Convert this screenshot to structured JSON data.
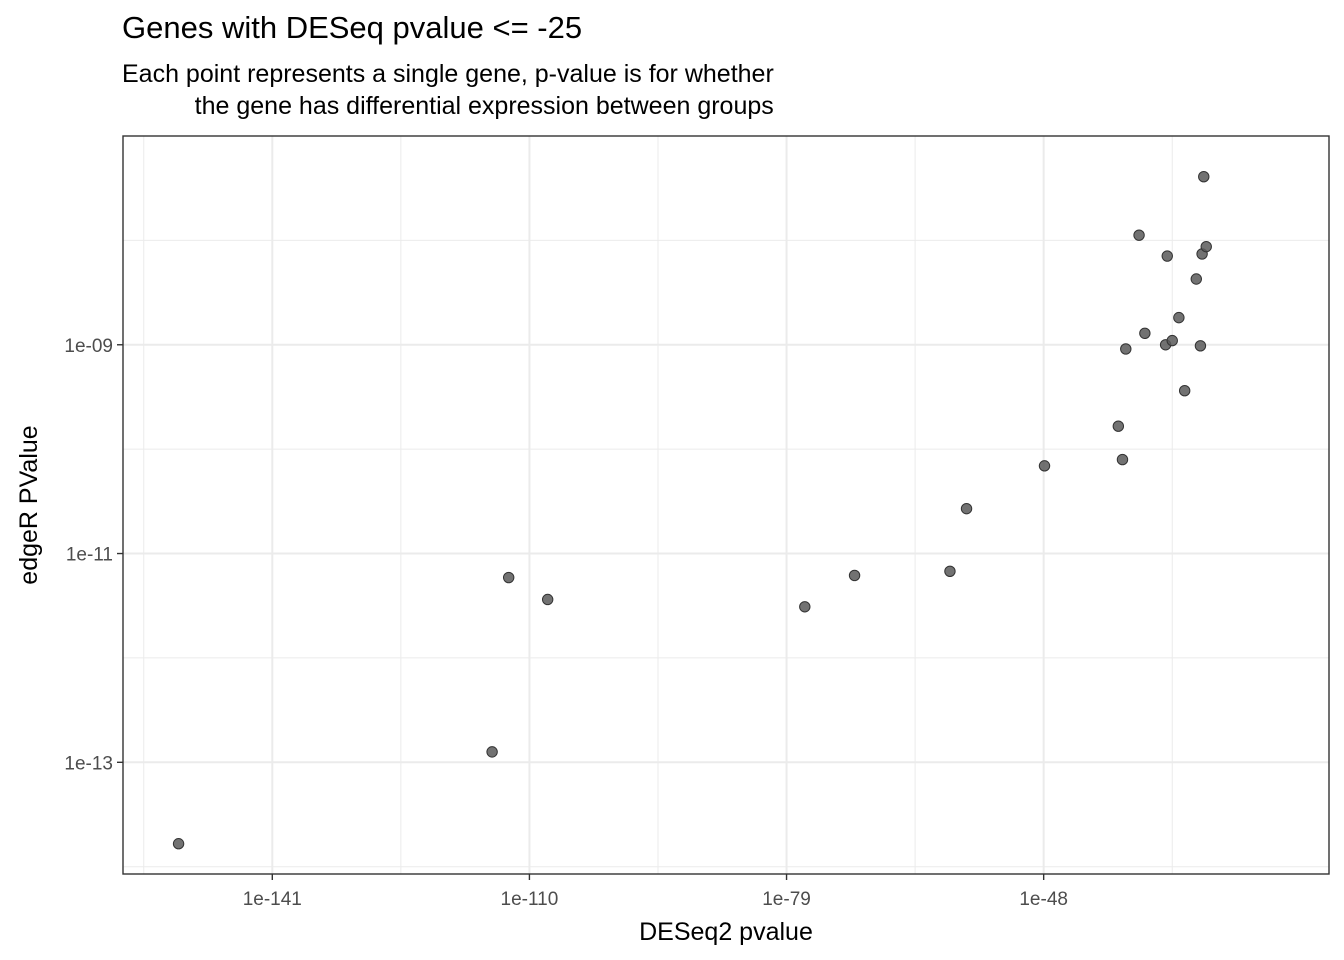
{
  "chart_data": {
    "type": "scatter",
    "title": "Genes with DESeq pvalue <= -25",
    "subtitle_lines": [
      "Each point represents a single gene, p-value is for whether",
      "the gene has differential expression between groups"
    ],
    "xlabel": "DESeq2 pvalue",
    "ylabel": "edgeR PValue",
    "x_scale": "log10",
    "y_scale": "log10",
    "xlim_log10": [
      -159.0,
      -13.6
    ],
    "ylim_log10": [
      -14.07,
      -7.0
    ],
    "x_ticks": [
      {
        "log10": -141,
        "label": "1e-141"
      },
      {
        "log10": -110,
        "label": "1e-110"
      },
      {
        "log10": -79,
        "label": "1e-79"
      },
      {
        "log10": -48,
        "label": "1e-48"
      }
    ],
    "y_ticks": [
      {
        "log10": -9,
        "label": "1e-09"
      },
      {
        "log10": -11,
        "label": "1e-11"
      },
      {
        "log10": -13,
        "label": "1e-13"
      }
    ],
    "grid": true,
    "point_color": "#595959",
    "points_log10": [
      {
        "x": -152.3,
        "y": -13.78
      },
      {
        "x": -114.5,
        "y": -12.9
      },
      {
        "x": -112.5,
        "y": -11.23
      },
      {
        "x": -107.8,
        "y": -11.44
      },
      {
        "x": -76.8,
        "y": -11.51
      },
      {
        "x": -70.8,
        "y": -11.21
      },
      {
        "x": -59.3,
        "y": -11.17
      },
      {
        "x": -57.3,
        "y": -10.57
      },
      {
        "x": -47.9,
        "y": -10.16
      },
      {
        "x": -39.0,
        "y": -9.78
      },
      {
        "x": -38.5,
        "y": -10.1
      },
      {
        "x": -38.1,
        "y": -9.04
      },
      {
        "x": -36.5,
        "y": -7.95
      },
      {
        "x": -35.8,
        "y": -8.89
      },
      {
        "x": -33.3,
        "y": -9.0
      },
      {
        "x": -33.1,
        "y": -8.15
      },
      {
        "x": -32.5,
        "y": -8.96
      },
      {
        "x": -31.7,
        "y": -8.74
      },
      {
        "x": -31.0,
        "y": -9.44
      },
      {
        "x": -29.6,
        "y": -8.37
      },
      {
        "x": -29.1,
        "y": -9.01
      },
      {
        "x": -28.9,
        "y": -8.13
      },
      {
        "x": -28.7,
        "y": -7.39
      },
      {
        "x": -28.4,
        "y": -8.06
      }
    ]
  }
}
